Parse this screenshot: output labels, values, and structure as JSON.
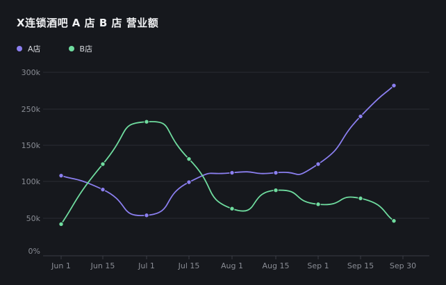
{
  "chart_data": {
    "type": "line",
    "title": "X连锁酒吧 A 店 B 店 营业额",
    "legend_position": "top-left",
    "grid": true,
    "y_ticks": [
      "0%",
      "50k",
      "100k",
      "150k",
      "250k",
      "300k"
    ],
    "x_ticks": [
      "Jun 1",
      "Jun 15",
      "Jul 1",
      "Jul 15",
      "Aug 1",
      "Aug 15",
      "Sep 1",
      "Sep 15",
      "Sep 30"
    ],
    "series": [
      {
        "name": "A店",
        "color": "#8b7ff0",
        "x": [
          "Jun 1",
          "Jun 15",
          "Jul 1",
          "Jul 15",
          "Aug 1",
          "Aug 15",
          "Sep 1",
          "Sep 15",
          "Sep 28"
        ],
        "values": [
          108000,
          89000,
          54000,
          99000,
          112000,
          112000,
          124000,
          230000,
          282000
        ]
      },
      {
        "name": "B店",
        "color": "#6fdc9f",
        "x": [
          "Jun 1",
          "Jun 15",
          "Jul 1",
          "Jul 15",
          "Aug 1",
          "Aug 15",
          "Sep 1",
          "Sep 15",
          "Sep 28"
        ],
        "values": [
          41000,
          124000,
          215000,
          131000,
          63000,
          88000,
          69000,
          77000,
          46000
        ]
      }
    ]
  }
}
